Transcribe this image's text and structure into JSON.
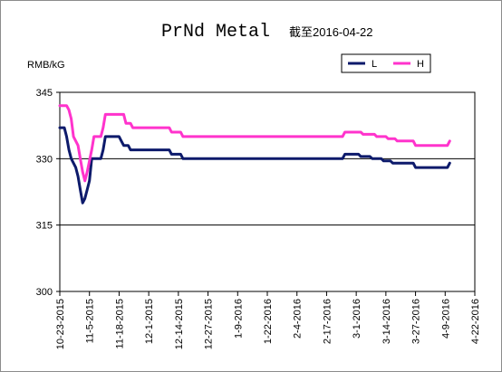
{
  "chart_data": {
    "type": "line",
    "title": "PrNd Metal",
    "subtitle": "截至2016-04-22",
    "ylabel": "RMB/kG",
    "ylim": [
      300,
      345
    ],
    "yticks": [
      300,
      315,
      330,
      345
    ],
    "reference_lines": [
      315,
      330
    ],
    "legend_position": "top-right",
    "x_tick_labels": [
      "10-23-2015",
      "11-5-2015",
      "11-18-2015",
      "12-1-2015",
      "12-14-2015",
      "12-27-2015",
      "1-9-2016",
      "1-22-2016",
      "2-4-2016",
      "2-17-2016",
      "3-1-2016",
      "3-14-2016",
      "3-27-2016",
      "4-9-2016",
      "4-22-2016"
    ],
    "x_tick_days": [
      0,
      13,
      26,
      39,
      52,
      65,
      78,
      91,
      104,
      117,
      130,
      143,
      156,
      169,
      182
    ],
    "series": [
      {
        "name": "L",
        "color": "#0d1a6b",
        "points": [
          [
            0,
            337
          ],
          [
            2,
            337
          ],
          [
            3,
            335
          ],
          [
            4,
            332
          ],
          [
            5,
            330
          ],
          [
            6,
            329
          ],
          [
            7,
            328
          ],
          [
            8,
            326
          ],
          [
            9,
            323
          ],
          [
            10,
            320
          ],
          [
            11,
            321
          ],
          [
            12,
            323
          ],
          [
            13,
            325
          ],
          [
            14,
            330
          ],
          [
            18,
            330
          ],
          [
            19,
            332
          ],
          [
            20,
            335
          ],
          [
            26,
            335
          ],
          [
            27,
            334
          ],
          [
            28,
            333
          ],
          [
            30,
            333
          ],
          [
            31,
            332
          ],
          [
            48,
            332
          ],
          [
            49,
            331
          ],
          [
            53,
            331
          ],
          [
            54,
            330
          ],
          [
            124,
            330
          ],
          [
            125,
            331
          ],
          [
            131,
            331
          ],
          [
            132,
            330.5
          ],
          [
            136,
            330.5
          ],
          [
            137,
            330
          ],
          [
            141,
            330
          ],
          [
            142,
            329.5
          ],
          [
            145,
            329.5
          ],
          [
            146,
            329
          ],
          [
            155,
            329
          ],
          [
            156,
            328
          ],
          [
            170,
            328
          ],
          [
            171,
            329
          ]
        ]
      },
      {
        "name": "H",
        "color": "#ff33cc",
        "points": [
          [
            0,
            342
          ],
          [
            3,
            342
          ],
          [
            4,
            341
          ],
          [
            5,
            339
          ],
          [
            6,
            335
          ],
          [
            8,
            333
          ],
          [
            9,
            330
          ],
          [
            10,
            327
          ],
          [
            11,
            325
          ],
          [
            12,
            327
          ],
          [
            14,
            332
          ],
          [
            15,
            335
          ],
          [
            18,
            335
          ],
          [
            19,
            337
          ],
          [
            20,
            340
          ],
          [
            28,
            340
          ],
          [
            29,
            338
          ],
          [
            31,
            338
          ],
          [
            32,
            337
          ],
          [
            48,
            337
          ],
          [
            49,
            336
          ],
          [
            53,
            336
          ],
          [
            54,
            335
          ],
          [
            124,
            335
          ],
          [
            125,
            336
          ],
          [
            132,
            336
          ],
          [
            133,
            335.5
          ],
          [
            138,
            335.5
          ],
          [
            139,
            335
          ],
          [
            143,
            335
          ],
          [
            144,
            334.5
          ],
          [
            147,
            334.5
          ],
          [
            148,
            334
          ],
          [
            155,
            334
          ],
          [
            156,
            333
          ],
          [
            170,
            333
          ],
          [
            171,
            334
          ]
        ]
      }
    ]
  }
}
